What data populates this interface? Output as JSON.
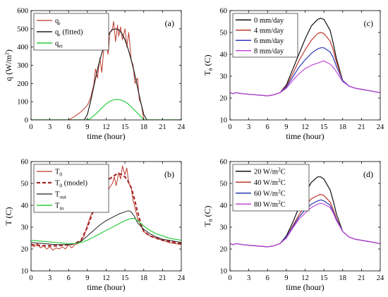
{
  "chart_data": [
    {
      "id": "a",
      "type": "line",
      "panel_label": "(a)",
      "xlabel": "time (hour)",
      "ylabel": "q (W/m²)",
      "ylabel_main": "q (W/m",
      "ylabel_sup": "2",
      "ylabel_end": ")",
      "xlim": [
        0,
        24
      ],
      "ylim": [
        0,
        600
      ],
      "xticks": [
        0,
        3,
        6,
        9,
        12,
        15,
        18,
        21,
        24
      ],
      "yticks": [
        0,
        100,
        200,
        300,
        400,
        500,
        600
      ],
      "grid": false,
      "legend_position": "top-left",
      "series": [
        {
          "name": "q_r",
          "legend_main": "q",
          "legend_sub": "r",
          "color": "#c0392b",
          "dash": "",
          "width": 1,
          "x": [
            0,
            6,
            7,
            8,
            9,
            9.5,
            10,
            10.3,
            10.6,
            11,
            11.3,
            11.6,
            12,
            12.3,
            12.6,
            13,
            13.2,
            13.5,
            13.8,
            14,
            14.3,
            14.6,
            15,
            15.3,
            15.6,
            16,
            16.3,
            16.6,
            17,
            17.3,
            17.6,
            18,
            19,
            24
          ],
          "y": [
            0,
            0,
            20,
            45,
            80,
            120,
            190,
            280,
            230,
            340,
            260,
            380,
            420,
            360,
            480,
            500,
            540,
            430,
            520,
            460,
            510,
            440,
            500,
            400,
            480,
            330,
            300,
            200,
            230,
            110,
            90,
            0,
            0,
            0
          ]
        },
        {
          "name": "q_r (fitted)",
          "legend_main": "q",
          "legend_sub": "r",
          "legend_extra": " (fitted)",
          "color": "#222222",
          "dash": "",
          "width": 1.2,
          "x": [
            0,
            8.5,
            9,
            9.5,
            10,
            10.5,
            11,
            11.5,
            12,
            12.5,
            13,
            13.5,
            14,
            14.5,
            15,
            15.5,
            16,
            16.5,
            17,
            17.5,
            18,
            18.5,
            24
          ],
          "y": [
            0,
            0,
            30,
            100,
            180,
            260,
            330,
            390,
            440,
            475,
            495,
            500,
            495,
            475,
            440,
            390,
            330,
            260,
            180,
            100,
            30,
            0,
            0
          ]
        },
        {
          "name": "q_et",
          "legend_main": "q",
          "legend_sub": "et",
          "color": "#2ecc40",
          "dash": "",
          "width": 1.2,
          "x": [
            0,
            9,
            9.5,
            10,
            10.5,
            11,
            11.5,
            12,
            12.5,
            13,
            13.5,
            14,
            14.5,
            15,
            15.5,
            16,
            16.5,
            17,
            17.5,
            18,
            24
          ],
          "y": [
            0,
            0,
            8,
            22,
            38,
            55,
            72,
            88,
            100,
            108,
            112,
            112,
            108,
            100,
            88,
            72,
            55,
            38,
            20,
            0,
            0
          ]
        }
      ]
    },
    {
      "id": "b",
      "type": "line",
      "panel_label": "(b)",
      "xlabel": "time (hour)",
      "ylabel": "T (C)",
      "xlim": [
        0,
        24
      ],
      "ylim": [
        10,
        60
      ],
      "xticks": [
        0,
        3,
        6,
        9,
        12,
        15,
        18,
        21,
        24
      ],
      "yticks": [
        10,
        20,
        30,
        40,
        50,
        60
      ],
      "grid": false,
      "legend_position": "top-left",
      "series": [
        {
          "name": "T_0",
          "legend_main": "T",
          "legend_sub": "0",
          "color": "#c0392b",
          "dash": "",
          "width": 1,
          "x": [
            0,
            0.5,
            1,
            1.5,
            2,
            2.5,
            3,
            3.5,
            4,
            4.5,
            5,
            5.5,
            6,
            6.5,
            7,
            7.5,
            8,
            8.5,
            9,
            9.5,
            10,
            10.5,
            11,
            11.5,
            12,
            12.5,
            13,
            13.3,
            13.6,
            14,
            14.3,
            14.6,
            15,
            15.3,
            15.6,
            16,
            16.3,
            16.6,
            17,
            17.5,
            18,
            18.5,
            19,
            20,
            21,
            22,
            23,
            24
          ],
          "y": [
            22,
            21,
            22.5,
            20.5,
            21.5,
            20,
            21,
            19.5,
            20.5,
            20,
            21,
            20,
            22,
            20.5,
            22,
            22.5,
            24,
            26,
            31,
            35,
            38,
            42,
            40,
            46,
            44,
            48,
            50,
            53,
            49,
            55,
            52,
            58,
            54,
            57,
            50,
            48,
            42,
            39,
            34,
            31,
            28,
            27,
            26,
            25,
            24,
            23,
            22.5,
            22
          ]
        },
        {
          "name": "T_0 (model)",
          "legend_main": "T",
          "legend_sub": "0",
          "legend_extra": " (model)",
          "color": "#a52a2a",
          "dash": "5,3",
          "width": 2.2,
          "x": [
            0,
            2,
            4,
            6,
            7,
            8,
            8.5,
            9,
            9.5,
            10,
            10.5,
            11,
            11.5,
            12,
            12.5,
            13,
            13.5,
            14,
            14.5,
            15,
            15.5,
            16,
            16.5,
            17,
            17.5,
            18,
            19,
            20,
            21,
            22,
            23,
            24
          ],
          "y": [
            22,
            21.5,
            21.5,
            22,
            22.5,
            24,
            27,
            30,
            34,
            38,
            42,
            45,
            48,
            50,
            52,
            53,
            54,
            54.5,
            54,
            53,
            51,
            48,
            43,
            37,
            32,
            28,
            26,
            25,
            24,
            23.5,
            23,
            22.5
          ]
        },
        {
          "name": "T_out",
          "legend_main": "T",
          "legend_sub": "out",
          "color": "#222222",
          "dash": "",
          "width": 1,
          "x": [
            0,
            2,
            4,
            6,
            7,
            8,
            9,
            10,
            11,
            12,
            13,
            14,
            15,
            15.5,
            16,
            16.5,
            17,
            18,
            19,
            20,
            21,
            22,
            23,
            24
          ],
          "y": [
            23,
            22.5,
            22,
            22,
            22.5,
            23.5,
            26,
            28.5,
            31,
            33,
            34.5,
            36,
            37,
            37.5,
            37,
            35,
            32,
            29,
            27,
            25.5,
            24.5,
            24,
            23.5,
            23
          ]
        },
        {
          "name": "T_in",
          "legend_main": "T",
          "legend_sub": "in",
          "color": "#2ecc40",
          "dash": "",
          "width": 1.2,
          "x": [
            0,
            2,
            4,
            6,
            7,
            8,
            9,
            10,
            11,
            12,
            13,
            14,
            15,
            16,
            16.5,
            17,
            18,
            19,
            20,
            21,
            22,
            23,
            24
          ],
          "y": [
            24,
            23.5,
            23,
            22.5,
            22.5,
            23,
            24,
            25.5,
            27,
            28.5,
            30,
            31.5,
            33,
            34,
            34,
            33,
            30.5,
            28.5,
            27,
            26,
            25,
            24.5,
            24
          ]
        }
      ]
    },
    {
      "id": "c",
      "type": "line",
      "panel_label": "(c)",
      "xlabel": "time (hour)",
      "ylabel": "T_0 (C)",
      "ylabel_main": "T",
      "ylabel_sub": "0",
      "ylabel_end": " (C)",
      "xlim": [
        0,
        24
      ],
      "ylim": [
        10,
        60
      ],
      "xticks": [
        0,
        3,
        6,
        9,
        12,
        15,
        18,
        21,
        24
      ],
      "yticks": [
        10,
        20,
        30,
        40,
        50,
        60
      ],
      "grid": false,
      "legend_position": "top-left",
      "series": [
        {
          "name": "0 mm/day",
          "legend_main": "0 mm/day",
          "color": "#111111",
          "dash": "",
          "width": 1.2,
          "x": [
            0,
            0.5,
            1,
            2,
            4,
            6,
            7,
            8,
            9,
            10,
            11,
            12,
            13,
            14,
            14.5,
            15,
            16,
            16.5,
            17,
            18,
            19,
            20,
            21,
            22,
            23,
            24
          ],
          "y": [
            22.5,
            22,
            22.5,
            22,
            21.5,
            21,
            21.5,
            22.5,
            26,
            33,
            40,
            47,
            53,
            56,
            56.5,
            56,
            51,
            45,
            38,
            28,
            25.5,
            24.5,
            24,
            23.5,
            23,
            22.5
          ]
        },
        {
          "name": "4 mm/day",
          "legend_main": "4 mm/day",
          "color": "#c0392b",
          "dash": "",
          "width": 1.2,
          "x": [
            0,
            0.5,
            1,
            2,
            4,
            6,
            7,
            8,
            9,
            10,
            11,
            12,
            13,
            14,
            14.5,
            15,
            16,
            16.5,
            17,
            18,
            19,
            20,
            21,
            22,
            23,
            24
          ],
          "y": [
            22.5,
            22,
            22.5,
            22,
            21.5,
            21,
            21.5,
            22.5,
            25.5,
            31,
            37,
            42,
            46.5,
            49.5,
            50,
            49.5,
            46,
            42,
            36.5,
            28,
            25.5,
            24.5,
            24,
            23.5,
            23,
            22.5
          ]
        },
        {
          "name": "6 mm/day",
          "legend_main": "6 mm/day",
          "color": "#2e3ab5",
          "dash": "",
          "width": 1.2,
          "x": [
            0,
            0.5,
            1,
            2,
            4,
            6,
            7,
            8,
            9,
            10,
            11,
            12,
            13,
            14,
            14.5,
            15,
            16,
            16.5,
            17,
            18,
            19,
            20,
            21,
            22,
            23,
            24
          ],
          "y": [
            22.5,
            22,
            22.5,
            22,
            21.5,
            21,
            21.5,
            22.5,
            25,
            29.5,
            34,
            37.5,
            40.5,
            42.5,
            43,
            43,
            41,
            38.5,
            34.5,
            28,
            25.5,
            24.5,
            24,
            23.5,
            23,
            22.5
          ]
        },
        {
          "name": "8 mm/day",
          "legend_main": "8 mm/day",
          "color": "#c04ad8",
          "dash": "",
          "width": 1.2,
          "x": [
            0,
            0.5,
            1,
            2,
            4,
            6,
            7,
            8,
            9,
            10,
            11,
            12,
            13,
            14,
            14.5,
            15,
            16,
            16.5,
            17,
            18,
            19,
            20,
            21,
            22,
            23,
            24
          ],
          "y": [
            22.5,
            22,
            22.5,
            22,
            21.5,
            21,
            21.5,
            22.5,
            24.5,
            28,
            31,
            33.5,
            35,
            36,
            36.5,
            37,
            35.5,
            34,
            32,
            27.5,
            25.5,
            24.5,
            24,
            23.5,
            23,
            22.5
          ]
        }
      ]
    },
    {
      "id": "d",
      "type": "line",
      "panel_label": "(d)",
      "xlabel": "time (hour)",
      "ylabel": "T_0 (C)",
      "ylabel_main": "T",
      "ylabel_sub": "0",
      "ylabel_end": " (C)",
      "xlim": [
        0,
        24
      ],
      "ylim": [
        10,
        60
      ],
      "xticks": [
        0,
        3,
        6,
        9,
        12,
        15,
        18,
        21,
        24
      ],
      "yticks": [
        10,
        20,
        30,
        40,
        50,
        60
      ],
      "grid": false,
      "legend_position": "top-left",
      "series": [
        {
          "name": "20 W/m²C",
          "legend_main": "20 W/m",
          "legend_sup": "2",
          "legend_extra": "C",
          "color": "#111111",
          "dash": "",
          "width": 1.2,
          "x": [
            0,
            0.5,
            1,
            2,
            4,
            6,
            7,
            8,
            9,
            10,
            11,
            12,
            13,
            14,
            14.5,
            15,
            16,
            16.5,
            17,
            18,
            19,
            20,
            21,
            22,
            23,
            24
          ],
          "y": [
            22.5,
            22,
            22.5,
            22,
            21.5,
            21,
            21.5,
            22.5,
            26,
            32,
            39,
            45.5,
            50.5,
            53,
            53,
            52,
            47,
            42,
            36,
            28,
            25.5,
            24.5,
            24,
            23.5,
            23,
            22.5
          ]
        },
        {
          "name": "40 W/m²C",
          "legend_main": "40 W/m",
          "legend_sup": "2",
          "legend_extra": "C",
          "color": "#c0392b",
          "dash": "",
          "width": 1.2,
          "x": [
            0,
            0.5,
            1,
            2,
            4,
            6,
            7,
            8,
            9,
            10,
            11,
            12,
            13,
            14,
            14.5,
            15,
            16,
            16.5,
            17,
            18,
            19,
            20,
            21,
            22,
            23,
            24
          ],
          "y": [
            22.5,
            22,
            22.5,
            22,
            21.5,
            21,
            21.5,
            22.5,
            25.5,
            30.5,
            35.5,
            40,
            43,
            44.5,
            45,
            44.5,
            41.5,
            38,
            34,
            28,
            25.5,
            24.5,
            24,
            23.5,
            23,
            22.5
          ]
        },
        {
          "name": "60 W/m²C",
          "legend_main": "60 W/m",
          "legend_sup": "2",
          "legend_extra": "C",
          "color": "#2e3ab5",
          "dash": "",
          "width": 1.2,
          "x": [
            0,
            0.5,
            1,
            2,
            4,
            6,
            7,
            8,
            9,
            10,
            11,
            12,
            13,
            14,
            14.5,
            15,
            16,
            16.5,
            17,
            18,
            19,
            20,
            21,
            22,
            23,
            24
          ],
          "y": [
            22.5,
            22,
            22.5,
            22,
            21.5,
            21,
            21.5,
            22.5,
            25.5,
            30,
            34.5,
            38,
            40.5,
            42,
            42.5,
            42,
            40,
            37,
            33.5,
            28,
            25.5,
            24.5,
            24,
            23.5,
            23,
            22.5
          ]
        },
        {
          "name": "80 W/m²C",
          "legend_main": "80 W/m",
          "legend_sup": "2",
          "legend_extra": "C",
          "color": "#c04ad8",
          "dash": "",
          "width": 1.2,
          "x": [
            0,
            0.5,
            1,
            2,
            4,
            6,
            7,
            8,
            9,
            10,
            11,
            12,
            13,
            14,
            14.5,
            15,
            16,
            16.5,
            17,
            18,
            19,
            20,
            21,
            22,
            23,
            24
          ],
          "y": [
            22.5,
            22,
            22.5,
            22,
            21.5,
            21,
            21.5,
            22.5,
            25,
            29.5,
            33.5,
            36.5,
            39,
            40.5,
            41,
            40.5,
            39,
            36.5,
            33,
            28,
            25.5,
            24.5,
            24,
            23.5,
            23,
            22.5
          ]
        }
      ]
    }
  ]
}
